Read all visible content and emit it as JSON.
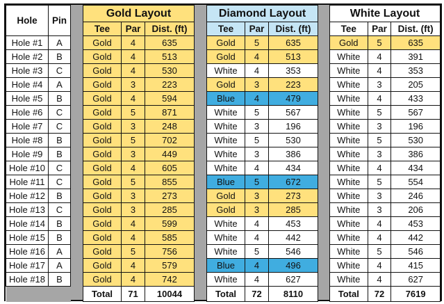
{
  "colors": {
    "Gold": "#ffe17d",
    "Blue": "#40ade0",
    "White": "#ffffff",
    "header_diamond": "#c5e5f5",
    "separator": "#a6a6a6"
  },
  "holes": {
    "headers": {
      "hole": "Hole",
      "pin": "Pin"
    },
    "rows": [
      {
        "hole": "Hole #1",
        "pin": "A"
      },
      {
        "hole": "Hole #2",
        "pin": "B"
      },
      {
        "hole": "Hole #3",
        "pin": "C"
      },
      {
        "hole": "Hole #4",
        "pin": "A"
      },
      {
        "hole": "Hole #5",
        "pin": "B"
      },
      {
        "hole": "Hole #6",
        "pin": "C"
      },
      {
        "hole": "Hole #7",
        "pin": "C"
      },
      {
        "hole": "Hole #8",
        "pin": "B"
      },
      {
        "hole": "Hole #9",
        "pin": "B"
      },
      {
        "hole": "Hole #10",
        "pin": "C"
      },
      {
        "hole": "Hole #11",
        "pin": "C"
      },
      {
        "hole": "Hole #12",
        "pin": "B"
      },
      {
        "hole": "Hole #13",
        "pin": "C"
      },
      {
        "hole": "Hole #14",
        "pin": "B"
      },
      {
        "hole": "Hole #15",
        "pin": "B"
      },
      {
        "hole": "Hole #16",
        "pin": "A"
      },
      {
        "hole": "Hole #17",
        "pin": "A"
      },
      {
        "hole": "Hole #18",
        "pin": "B"
      }
    ]
  },
  "layouts": [
    {
      "id": "gold",
      "title": "Gold Layout",
      "headers": {
        "tee": "Tee",
        "par": "Par",
        "dist": "Dist. (ft)"
      },
      "rows": [
        {
          "tee": "Gold",
          "par": "4",
          "dist": "635"
        },
        {
          "tee": "Gold",
          "par": "4",
          "dist": "513"
        },
        {
          "tee": "Gold",
          "par": "4",
          "dist": "530"
        },
        {
          "tee": "Gold",
          "par": "3",
          "dist": "223"
        },
        {
          "tee": "Gold",
          "par": "4",
          "dist": "594"
        },
        {
          "tee": "Gold",
          "par": "5",
          "dist": "871"
        },
        {
          "tee": "Gold",
          "par": "3",
          "dist": "248"
        },
        {
          "tee": "Gold",
          "par": "5",
          "dist": "702"
        },
        {
          "tee": "Gold",
          "par": "3",
          "dist": "449"
        },
        {
          "tee": "Gold",
          "par": "4",
          "dist": "605"
        },
        {
          "tee": "Gold",
          "par": "5",
          "dist": "855"
        },
        {
          "tee": "Gold",
          "par": "3",
          "dist": "273"
        },
        {
          "tee": "Gold",
          "par": "3",
          "dist": "285"
        },
        {
          "tee": "Gold",
          "par": "4",
          "dist": "599"
        },
        {
          "tee": "Gold",
          "par": "4",
          "dist": "585"
        },
        {
          "tee": "Gold",
          "par": "5",
          "dist": "756"
        },
        {
          "tee": "Gold",
          "par": "4",
          "dist": "579"
        },
        {
          "tee": "Gold",
          "par": "4",
          "dist": "742"
        }
      ],
      "total": {
        "label": "Total",
        "par": "71",
        "dist": "10044"
      }
    },
    {
      "id": "diamond",
      "title": "Diamond Layout",
      "headers": {
        "tee": "Tee",
        "par": "Par",
        "dist": "Dist. (ft)"
      },
      "rows": [
        {
          "tee": "Gold",
          "par": "5",
          "dist": "635"
        },
        {
          "tee": "Gold",
          "par": "4",
          "dist": "513"
        },
        {
          "tee": "White",
          "par": "4",
          "dist": "353"
        },
        {
          "tee": "Gold",
          "par": "3",
          "dist": "223"
        },
        {
          "tee": "Blue",
          "par": "4",
          "dist": "479"
        },
        {
          "tee": "White",
          "par": "5",
          "dist": "567"
        },
        {
          "tee": "White",
          "par": "3",
          "dist": "196"
        },
        {
          "tee": "White",
          "par": "5",
          "dist": "530"
        },
        {
          "tee": "White",
          "par": "3",
          "dist": "386"
        },
        {
          "tee": "White",
          "par": "4",
          "dist": "434"
        },
        {
          "tee": "Blue",
          "par": "5",
          "dist": "672"
        },
        {
          "tee": "Gold",
          "par": "3",
          "dist": "273"
        },
        {
          "tee": "Gold",
          "par": "3",
          "dist": "285"
        },
        {
          "tee": "White",
          "par": "4",
          "dist": "453"
        },
        {
          "tee": "White",
          "par": "4",
          "dist": "442"
        },
        {
          "tee": "White",
          "par": "5",
          "dist": "546"
        },
        {
          "tee": "Blue",
          "par": "4",
          "dist": "496"
        },
        {
          "tee": "White",
          "par": "4",
          "dist": "627"
        }
      ],
      "total": {
        "label": "Total",
        "par": "72",
        "dist": "8110"
      }
    },
    {
      "id": "white",
      "title": "White Layout",
      "headers": {
        "tee": "Tee",
        "par": "Par",
        "dist": "Dist. (ft)"
      },
      "rows": [
        {
          "tee": "Gold",
          "par": "5",
          "dist": "635"
        },
        {
          "tee": "White",
          "par": "4",
          "dist": "391"
        },
        {
          "tee": "White",
          "par": "4",
          "dist": "353"
        },
        {
          "tee": "White",
          "par": "3",
          "dist": "205"
        },
        {
          "tee": "White",
          "par": "4",
          "dist": "433"
        },
        {
          "tee": "White",
          "par": "5",
          "dist": "567"
        },
        {
          "tee": "White",
          "par": "3",
          "dist": "196"
        },
        {
          "tee": "White",
          "par": "5",
          "dist": "530"
        },
        {
          "tee": "White",
          "par": "3",
          "dist": "386"
        },
        {
          "tee": "White",
          "par": "4",
          "dist": "434"
        },
        {
          "tee": "White",
          "par": "5",
          "dist": "554"
        },
        {
          "tee": "White",
          "par": "3",
          "dist": "246"
        },
        {
          "tee": "White",
          "par": "3",
          "dist": "206"
        },
        {
          "tee": "White",
          "par": "4",
          "dist": "453"
        },
        {
          "tee": "White",
          "par": "4",
          "dist": "442"
        },
        {
          "tee": "White",
          "par": "5",
          "dist": "546"
        },
        {
          "tee": "White",
          "par": "4",
          "dist": "415"
        },
        {
          "tee": "White",
          "par": "4",
          "dist": "627"
        }
      ],
      "total": {
        "label": "Total",
        "par": "72",
        "dist": "7619"
      }
    }
  ]
}
